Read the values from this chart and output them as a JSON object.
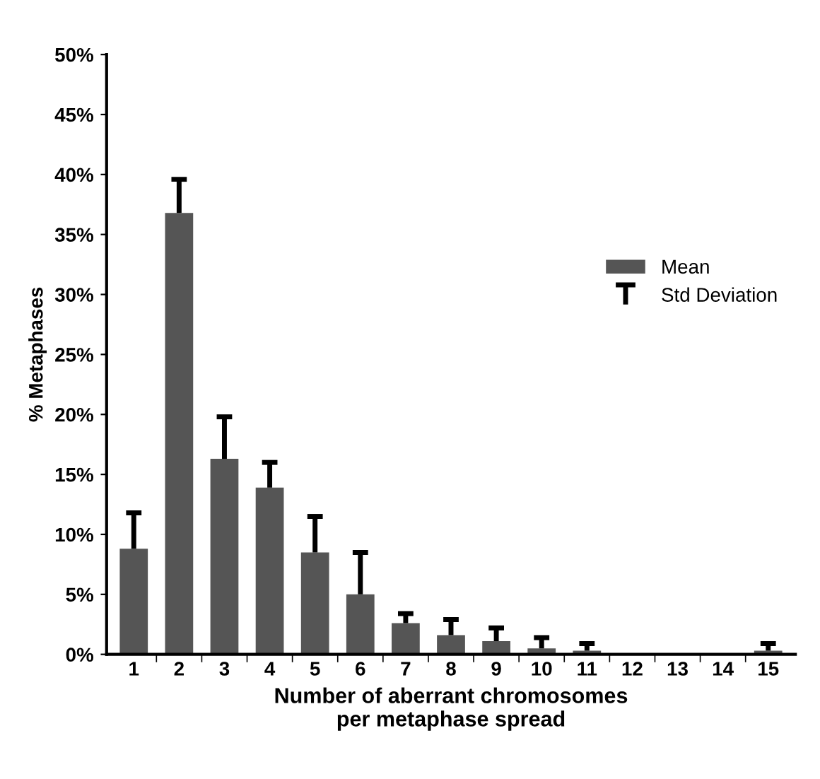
{
  "chart_data": {
    "type": "bar",
    "categories": [
      "1",
      "2",
      "3",
      "4",
      "5",
      "6",
      "7",
      "8",
      "9",
      "10",
      "11",
      "12",
      "13",
      "14",
      "15"
    ],
    "annotations": [
      "Std Deviation"
    ],
    "series": [
      {
        "name": "Mean",
        "color": "#555555",
        "values": [
          8.8,
          36.8,
          16.3,
          13.9,
          8.5,
          5.0,
          2.6,
          1.6,
          1.1,
          0.5,
          0.3,
          0,
          0,
          0,
          0.3
        ],
        "errors": [
          [
            8.8,
            11.8
          ],
          [
            36.8,
            39.6
          ],
          [
            16.3,
            19.8
          ],
          [
            13.9,
            16.0
          ],
          [
            8.5,
            11.5
          ],
          [
            5.0,
            8.5
          ],
          [
            2.6,
            3.4
          ],
          [
            1.6,
            2.9
          ],
          [
            1.1,
            2.2
          ],
          [
            0.5,
            1.4
          ],
          [
            0.3,
            0.9
          ],
          null,
          null,
          null,
          [
            0.3,
            0.9
          ]
        ]
      }
    ],
    "ylim": [
      0,
      50
    ],
    "yticks": [
      {
        "value": 0,
        "label": "0%"
      },
      {
        "value": 5,
        "label": "5%"
      },
      {
        "value": 10,
        "label": "10%"
      },
      {
        "value": 15,
        "label": "15%"
      },
      {
        "value": 20,
        "label": "20%"
      },
      {
        "value": 25,
        "label": "25%"
      },
      {
        "value": 30,
        "label": "30%"
      },
      {
        "value": 35,
        "label": "35%"
      },
      {
        "value": 40,
        "label": "40%"
      },
      {
        "value": 45,
        "label": "45%"
      },
      {
        "value": 50,
        "label": "50%"
      }
    ],
    "ylabel": "% Metaphases",
    "xlabel": "Number of aberrant chromosomes\nper metaphase spread",
    "grid": false,
    "legend": "right"
  }
}
